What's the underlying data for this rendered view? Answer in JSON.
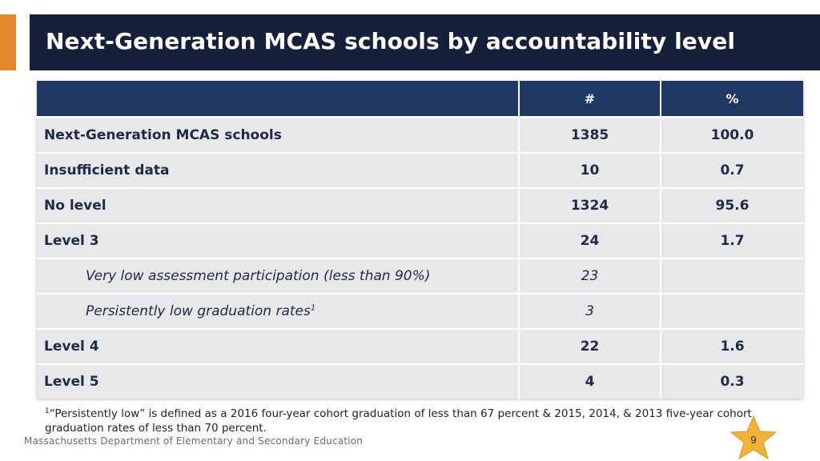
{
  "slide": {
    "title": "Next-Generation MCAS schools by accountability level",
    "organization": "Massachusetts Department of Elementary and Secondary Education",
    "page_number": "9",
    "colors": {
      "title_bar": "#16203a",
      "accent": "#e3892b",
      "table_header": "#203864",
      "row_bg": "#e7e8ea",
      "star": "#f2b233"
    }
  },
  "table": {
    "headers": [
      "",
      "#",
      "%"
    ],
    "rows": [
      {
        "label": "Next-Generation MCAS schools",
        "count": "1385",
        "percent": "100.0",
        "sub": false
      },
      {
        "label": "Insufficient data",
        "count": "10",
        "percent": "0.7",
        "sub": false
      },
      {
        "label": "No level",
        "count": "1324",
        "percent": "95.6",
        "sub": false
      },
      {
        "label": "Level 3",
        "count": "24",
        "percent": "1.7",
        "sub": false
      },
      {
        "label": "Very low assessment participation (less than 90%)",
        "count": "23",
        "percent": "",
        "sub": true
      },
      {
        "label": "Persistently low graduation rates",
        "label_sup": "1",
        "count": "3",
        "percent": "",
        "sub": true
      },
      {
        "label": "Level 4",
        "count": "22",
        "percent": "1.6",
        "sub": false
      },
      {
        "label": "Level 5",
        "count": "4",
        "percent": "0.3",
        "sub": false
      }
    ]
  },
  "footnote": {
    "marker": "1",
    "text": "“Persistently low” is defined as a 2016 four-year cohort graduation of less than 67 percent & 2015, 2014, & 2013 five-year cohort graduation rates of less than 70 percent."
  }
}
